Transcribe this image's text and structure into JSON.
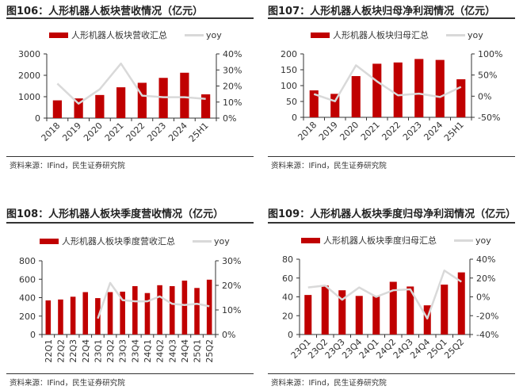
{
  "colors": {
    "bar": "#c00000",
    "yoy": "#d9d9d9",
    "axis": "#333333"
  },
  "chart_data": [
    {
      "type": "bar+line",
      "title": "图106：人形机器人板块营收情况（亿元）",
      "source": "资料来源：IFind，民生证券研究院",
      "legend": {
        "bar": "人形机器人板块营收汇总",
        "line": "yoy"
      },
      "categories": [
        "2018",
        "2019",
        "2020",
        "2021",
        "2022",
        "2023",
        "2024",
        "25H1"
      ],
      "series": [
        {
          "name": "人形机器人板块营收汇总",
          "type": "bar",
          "axis": "left",
          "values": [
            830,
            920,
            1080,
            1440,
            1650,
            1880,
            2120,
            1110
          ]
        },
        {
          "name": "yoy",
          "type": "line",
          "axis": "right",
          "values": [
            21.5,
            9,
            18,
            34,
            14,
            13,
            13,
            12
          ]
        }
      ],
      "ylim_left": [
        0,
        3000
      ],
      "yticks_left": [
        0,
        1000,
        2000,
        3000
      ],
      "ylim_right": [
        0,
        40
      ],
      "yticks_right": [
        "0%",
        "10%",
        "20%",
        "30%",
        "40%"
      ],
      "grid": false,
      "legend_position": "top",
      "xlabel_rotation": "45"
    },
    {
      "type": "bar+line",
      "title": "图107：人形机器人板块归母净利润情况（亿元）",
      "source": "资料来源：IFind，民生证券研究院",
      "legend": {
        "bar": "人形机器人板块归母汇总",
        "line": "yoy"
      },
      "categories": [
        "2018",
        "2019",
        "2020",
        "2021",
        "2022",
        "2023",
        "2024",
        "25H1"
      ],
      "series": [
        {
          "name": "人形机器人板块归母汇总",
          "type": "bar",
          "axis": "left",
          "values": [
            85,
            74,
            130,
            169,
            173,
            184,
            181,
            120
          ]
        },
        {
          "name": "yoy",
          "type": "line",
          "axis": "right",
          "values": [
            5,
            -12,
            73,
            35,
            2,
            6,
            -2,
            22
          ]
        }
      ],
      "ylim_left": [
        0,
        200
      ],
      "yticks_left": [
        0,
        50,
        100,
        150,
        200
      ],
      "ylim_right": [
        -50,
        100
      ],
      "yticks_right": [
        "-50%",
        "0%",
        "50%",
        "100%"
      ],
      "grid": false,
      "legend_position": "top",
      "xlabel_rotation": "45"
    },
    {
      "type": "bar+line",
      "title": "图108：人形机器人板块季度营收情况（亿元）",
      "source": "资料来源：IFind，民生证券研究院",
      "legend": {
        "bar": "人形机器人板块季度营收汇总",
        "line": "yoy"
      },
      "categories": [
        "22Q1",
        "22Q2",
        "22Q3",
        "22Q4",
        "23Q1",
        "23Q2",
        "23Q3",
        "23Q4",
        "24Q1",
        "24Q2",
        "24Q3",
        "24Q4",
        "25Q1",
        "25Q2"
      ],
      "series": [
        {
          "name": "人形机器人板块季度营收汇总",
          "type": "bar",
          "axis": "left",
          "values": [
            370,
            380,
            410,
            460,
            395,
            460,
            465,
            525,
            450,
            535,
            525,
            585,
            505,
            595
          ]
        },
        {
          "name": "yoy",
          "type": "line",
          "axis": "right",
          "values": [
            null,
            null,
            null,
            null,
            6.5,
            21,
            14,
            13.5,
            13.5,
            15.5,
            12.5,
            12,
            12.5,
            11.5
          ]
        }
      ],
      "ylim_left": [
        0,
        800
      ],
      "yticks_left": [
        0,
        200,
        400,
        600,
        800
      ],
      "ylim_right": [
        0,
        30
      ],
      "yticks_right": [
        "0%",
        "10%",
        "20%",
        "30%"
      ],
      "grid": false,
      "legend_position": "top",
      "xlabel_rotation": "90"
    },
    {
      "type": "bar+line",
      "title": "图109：人形机器人板块季度归母净利润情况（亿元）",
      "source": "资料来源：IFind，民生证券研究院",
      "legend": {
        "bar": "人形机器人板块季度归母汇总",
        "line": "yoy"
      },
      "categories": [
        "23Q1",
        "23Q2",
        "23Q3",
        "23Q4",
        "24Q1",
        "24Q2",
        "24Q3",
        "24Q4",
        "25Q1",
        "25Q2"
      ],
      "series": [
        {
          "name": "人形机器人板块季度归母汇总",
          "type": "bar",
          "axis": "left",
          "values": [
            42,
            52,
            47,
            41,
            41,
            56,
            51,
            31,
            53,
            66
          ]
        },
        {
          "name": "yoy",
          "type": "line",
          "axis": "right",
          "values": [
            10,
            12,
            -3,
            10,
            0,
            7,
            8,
            -23,
            28,
            16
          ]
        }
      ],
      "ylim_left": [
        0,
        80
      ],
      "yticks_left": [
        0,
        20,
        40,
        60,
        80
      ],
      "ylim_right": [
        -40,
        40
      ],
      "yticks_right": [
        "-40%",
        "-20%",
        "0%",
        "20%",
        "40%"
      ],
      "grid": false,
      "legend_position": "top",
      "xlabel_rotation": "45"
    }
  ]
}
